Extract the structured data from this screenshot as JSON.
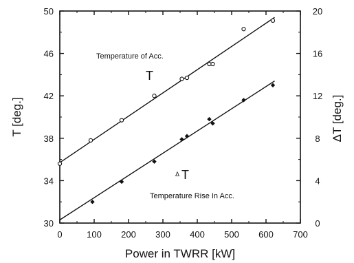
{
  "chart_data": {
    "type": "scatter",
    "xlabel": "Power in TWRR [kW]",
    "ylabel": "T [deg.]",
    "y2label": "ΔT [deg.]",
    "xlim": [
      0,
      700
    ],
    "ylim": [
      30,
      50
    ],
    "y2lim": [
      0,
      20
    ],
    "xticks": [
      0,
      100,
      200,
      300,
      400,
      500,
      600,
      700
    ],
    "yticks": [
      30,
      34,
      38,
      42,
      46,
      50
    ],
    "y2ticks": [
      0,
      4,
      8,
      12,
      16,
      20
    ],
    "grid": false,
    "series": [
      {
        "marker": "circle",
        "axis": "left",
        "points": [
          [
            0,
            35.6
          ],
          [
            90,
            37.8
          ],
          [
            180,
            39.7
          ],
          [
            275,
            42.0
          ],
          [
            355,
            43.6
          ],
          [
            370,
            43.7
          ],
          [
            435,
            45.0
          ],
          [
            445,
            45.0
          ],
          [
            535,
            48.3
          ],
          [
            620,
            49.1
          ]
        ],
        "fit": [
          [
            0,
            35.7
          ],
          [
            625,
            49.4
          ]
        ]
      },
      {
        "marker": "diamond",
        "axis": "right",
        "points": [
          [
            95,
            2.0
          ],
          [
            180,
            3.9
          ],
          [
            275,
            5.8
          ],
          [
            355,
            7.9
          ],
          [
            370,
            8.2
          ],
          [
            435,
            9.8
          ],
          [
            445,
            9.4
          ],
          [
            535,
            11.6
          ],
          [
            620,
            13.0
          ]
        ],
        "fit": [
          [
            0,
            0.3
          ],
          [
            625,
            13.4
          ]
        ]
      }
    ],
    "annotations": {
      "temp_title": "Temperature of Acc.",
      "temp_symbol": "T",
      "rise_delta": "Δ",
      "rise_symbol": "T",
      "rise_title": "Temperature Rise In Acc."
    }
  }
}
